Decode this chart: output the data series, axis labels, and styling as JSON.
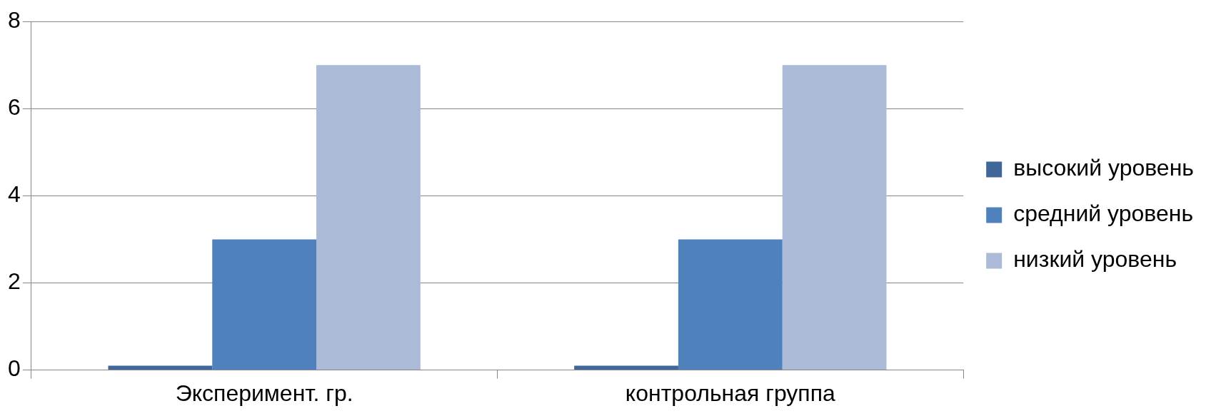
{
  "chart_data": {
    "type": "bar",
    "categories": [
      "Эксперимент. гр.",
      "контрольная группа"
    ],
    "series": [
      {
        "name": "высокий уровень",
        "color": "#3f679a",
        "values": [
          0.1,
          0.1
        ]
      },
      {
        "name": "средний уровень",
        "color": "#4f81bd",
        "values": [
          3,
          3
        ]
      },
      {
        "name": "низкий уровень",
        "color": "#aabad7",
        "values": [
          7,
          7
        ]
      }
    ],
    "ylim": [
      0,
      8
    ],
    "yticks": [
      0,
      2,
      4,
      6,
      8
    ],
    "grid": "y",
    "legend": "right"
  }
}
